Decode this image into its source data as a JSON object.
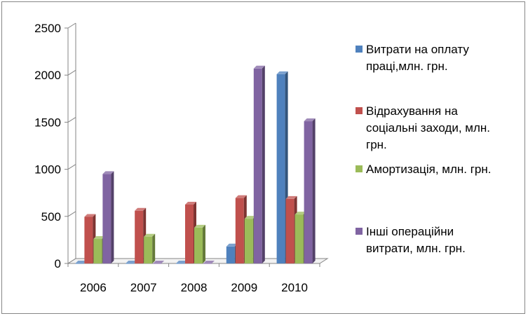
{
  "chart_data": {
    "type": "bar",
    "style": "3d-clustered-column",
    "categories": [
      "2006",
      "2007",
      "2008",
      "2009",
      "2010"
    ],
    "ylim": [
      0,
      2500
    ],
    "yticks": [
      "0",
      "500",
      "1000",
      "1500",
      "2000",
      "2500"
    ],
    "grid": false,
    "legend_position": "right",
    "series": [
      {
        "name": "Витрати на оплату праці,млн. грн.",
        "legend_lines": [
          "Витрати на оплату",
          "праці,млн. грн."
        ],
        "color": "#4F81BD",
        "values": [
          0,
          0,
          0,
          180,
          2010
        ]
      },
      {
        "name": "Відрахування на соціальні заходи, млн. грн.",
        "legend_lines": [
          "Відрахування на",
          "соціальні заходи, млн.",
          "грн."
        ],
        "color": "#C0504D",
        "values": [
          495,
          560,
          625,
          695,
          685
        ]
      },
      {
        "name": "Амортизація, млн.  грн.",
        "legend_lines": [
          "Амортизація, млн.  грн."
        ],
        "color": "#9BBB59",
        "values": [
          260,
          285,
          380,
          475,
          520
        ]
      },
      {
        "name": "Інші операційни витрати, млн. грн.",
        "legend_lines": [
          "Інші операційни",
          "витрати, млн. грн."
        ],
        "color": "#8064A2",
        "values": [
          950,
          0,
          0,
          2070,
          1510
        ]
      }
    ]
  }
}
